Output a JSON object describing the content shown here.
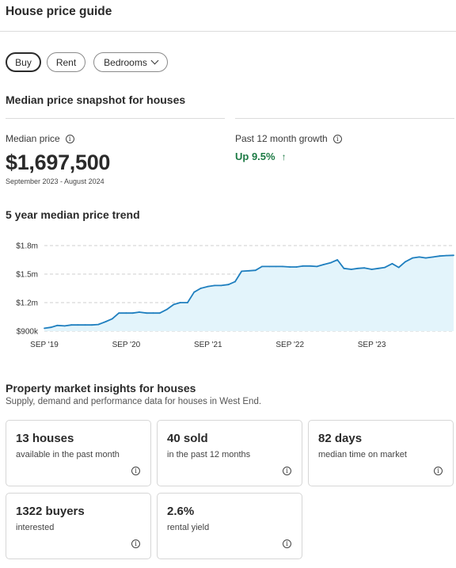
{
  "header": {
    "title": "House price guide"
  },
  "filters": [
    {
      "label": "Buy",
      "active": true
    },
    {
      "label": "Rent",
      "active": false
    },
    {
      "label": "Bedrooms",
      "active": false,
      "icon": "chevron-down-icon"
    }
  ],
  "snapshot": {
    "title": "Median price snapshot for houses",
    "median_label": "Median price",
    "median_value": "$1,697,500",
    "period": "September 2023 - August 2024",
    "growth_label": "Past 12 month growth",
    "growth_value": "Up 9.5%",
    "growth_arrow": "↑",
    "growth_color": "#1c7a44"
  },
  "info_glyph": "i",
  "trend": {
    "title": "5 year median price trend"
  },
  "chart_data": {
    "type": "area",
    "title": "5 year median price trend",
    "xlabel": "",
    "ylabel": "",
    "y_ticks": [
      {
        "value": 900000,
        "label": "$900k"
      },
      {
        "value": 1200000,
        "label": "$1.2m"
      },
      {
        "value": 1500000,
        "label": "$1.5m"
      },
      {
        "value": 1800000,
        "label": "$1.8m"
      }
    ],
    "x_ticks": [
      {
        "value": 2019.67,
        "label": "SEP '19"
      },
      {
        "value": 2020.67,
        "label": "SEP '20"
      },
      {
        "value": 2021.67,
        "label": "SEP '21"
      },
      {
        "value": 2022.67,
        "label": "SEP '22"
      },
      {
        "value": 2023.67,
        "label": "SEP '23"
      }
    ],
    "ylim": [
      900000,
      1800000
    ],
    "xlim": [
      2019.67,
      2024.67
    ],
    "grid": true,
    "line_color": "#1f7fbf",
    "fill_color": "#e3f4fb",
    "series": [
      {
        "x": [
          2019.67,
          2019.75,
          2019.83,
          2019.92,
          2020.0,
          2020.08,
          2020.17,
          2020.25,
          2020.33,
          2020.42,
          2020.5,
          2020.58,
          2020.67,
          2020.75,
          2020.83,
          2020.92,
          2021.0,
          2021.08,
          2021.17,
          2021.25,
          2021.33,
          2021.42,
          2021.5,
          2021.58,
          2021.67,
          2021.75,
          2021.83,
          2021.92,
          2022.0,
          2022.08,
          2022.17,
          2022.25,
          2022.33,
          2022.42,
          2022.5,
          2022.58,
          2022.67,
          2022.75,
          2022.83,
          2022.92,
          2023.0,
          2023.08,
          2023.17,
          2023.25,
          2023.33,
          2023.42,
          2023.5,
          2023.58,
          2023.67,
          2023.75,
          2023.83,
          2023.92,
          2024.0,
          2024.08,
          2024.17,
          2024.25,
          2024.33,
          2024.42,
          2024.5,
          2024.58,
          2024.67
        ],
        "values": [
          930000,
          940000,
          960000,
          955000,
          965000,
          965000,
          965000,
          965000,
          970000,
          1000000,
          1030000,
          1090000,
          1090000,
          1090000,
          1100000,
          1090000,
          1090000,
          1090000,
          1130000,
          1180000,
          1200000,
          1200000,
          1310000,
          1350000,
          1370000,
          1380000,
          1380000,
          1390000,
          1420000,
          1530000,
          1535000,
          1540000,
          1580000,
          1580000,
          1580000,
          1580000,
          1575000,
          1575000,
          1585000,
          1585000,
          1580000,
          1600000,
          1620000,
          1650000,
          1560000,
          1550000,
          1560000,
          1565000,
          1550000,
          1560000,
          1570000,
          1610000,
          1570000,
          1630000,
          1670000,
          1680000,
          1670000,
          1680000,
          1690000,
          1695000,
          1697500
        ]
      }
    ]
  },
  "insights": {
    "title": "Property market insights for houses",
    "subtitle": "Supply, demand and performance data for houses in West End.",
    "cards": [
      {
        "value": "13 houses",
        "caption": "available in the past month"
      },
      {
        "value": "40 sold",
        "caption": "in the past 12 months"
      },
      {
        "value": "82 days",
        "caption": "median time on market"
      },
      {
        "value": "1322 buyers",
        "caption": "interested"
      },
      {
        "value": "2.6%",
        "caption": "rental yield"
      }
    ]
  }
}
